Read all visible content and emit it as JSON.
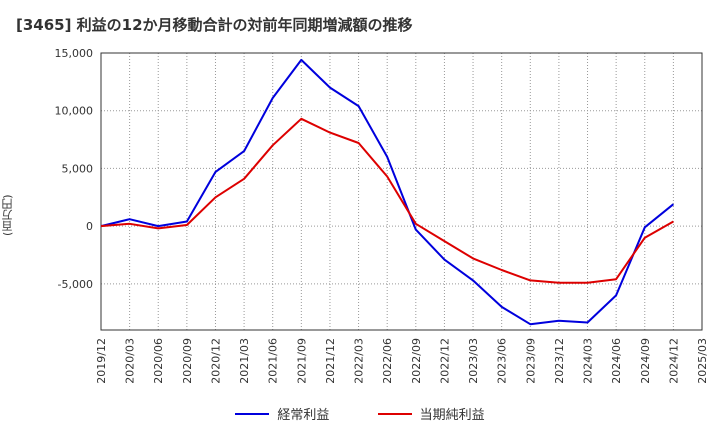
{
  "chart_data": {
    "type": "line",
    "title": "[3465]  利益の12か月移動合計の対前年同期増減額の推移",
    "ylabel": "(百万円)",
    "xlabel": "",
    "ylim": [
      -9000,
      15000
    ],
    "yticks": [
      15000,
      10000,
      5000,
      0,
      -5000
    ],
    "ytick_labels": [
      "15,000",
      "10,000",
      "5,000",
      "0",
      "-5,000"
    ],
    "categories": [
      "2019/12",
      "2020/03",
      "2020/06",
      "2020/09",
      "2020/12",
      "2021/03",
      "2021/06",
      "2021/09",
      "2021/12",
      "2022/03",
      "2022/06",
      "2022/09",
      "2022/12",
      "2023/03",
      "2023/06",
      "2023/09",
      "2023/12",
      "2024/03",
      "2024/06",
      "2024/09",
      "2024/12",
      "2025/03"
    ],
    "series": [
      {
        "name": "経常利益",
        "color": "#0000dd",
        "values": [
          0,
          600,
          0,
          400,
          4700,
          6500,
          11100,
          14400,
          12000,
          10400,
          6000,
          -300,
          -2900,
          -4700,
          -7000,
          -8500,
          -8200,
          -8350,
          -6000,
          -100,
          1900,
          null
        ]
      },
      {
        "name": "当期純利益",
        "color": "#dd0000",
        "values": [
          0,
          200,
          -200,
          100,
          2500,
          4100,
          7000,
          9300,
          8100,
          7200,
          4300,
          200,
          -1300,
          -2800,
          -3800,
          -4700,
          -4900,
          -4900,
          -4600,
          -1000,
          400,
          null
        ]
      }
    ],
    "grid": true,
    "legend": "bottom-center"
  }
}
